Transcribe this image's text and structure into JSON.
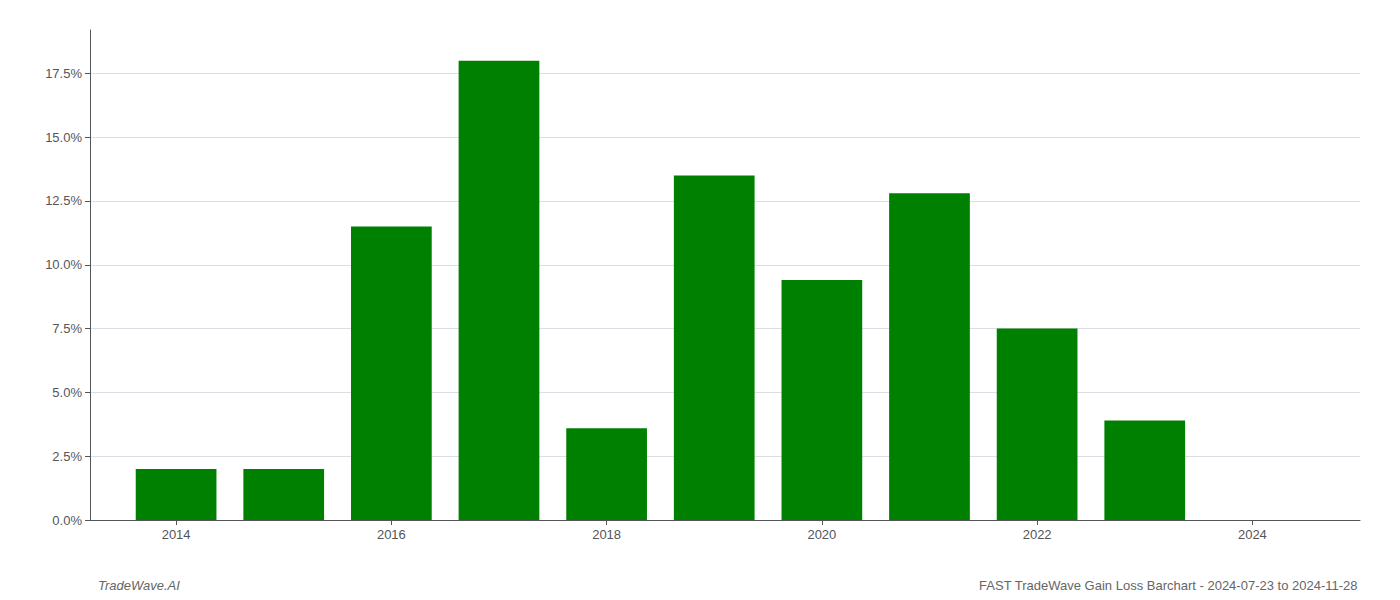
{
  "chart_data": {
    "type": "bar",
    "x": [
      2014,
      2015,
      2016,
      2017,
      2018,
      2019,
      2020,
      2021,
      2022,
      2023,
      2024
    ],
    "values": [
      0.02,
      0.02,
      0.115,
      0.18,
      0.036,
      0.135,
      0.094,
      0.128,
      0.075,
      0.039,
      0.0
    ],
    "color": "#008000",
    "xlim": [
      2013.2,
      2025.0
    ],
    "xticks": [
      2014,
      2016,
      2018,
      2020,
      2022,
      2024
    ],
    "ylim": [
      0.0,
      0.192
    ],
    "yticks": [
      {
        "value": 0.0,
        "label": "0.0%"
      },
      {
        "value": 0.025,
        "label": "2.5%"
      },
      {
        "value": 0.05,
        "label": "5.0%"
      },
      {
        "value": 0.075,
        "label": "7.5%"
      },
      {
        "value": 0.1,
        "label": "10.0%"
      },
      {
        "value": 0.125,
        "label": "12.5%"
      },
      {
        "value": 0.15,
        "label": "15.0%"
      },
      {
        "value": 0.175,
        "label": "17.5%"
      }
    ],
    "grid": true,
    "annotations": [
      "TradeWave.AI",
      "FAST TradeWave Gain Loss Barchart - 2024-07-23 to 2024-11-28"
    ]
  }
}
